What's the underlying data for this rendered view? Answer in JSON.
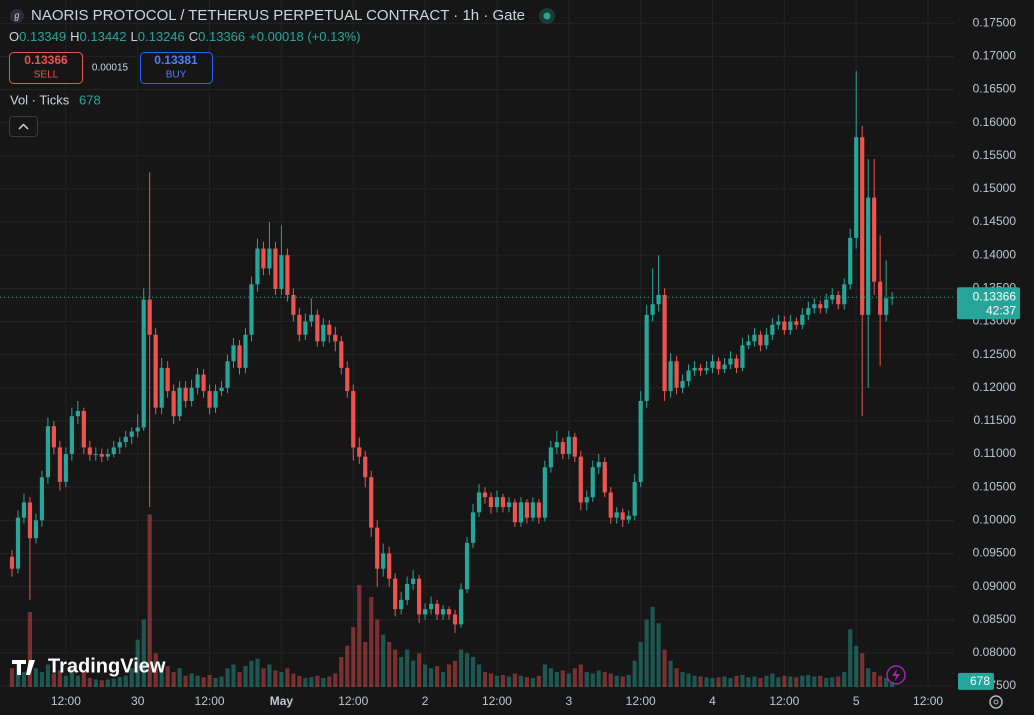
{
  "chart_data": {
    "type": "candlestick",
    "title": "NAORIS PROTOCOL / TETHERUS PERPETUAL CONTRACT · 1h · Gate",
    "ohlc_legend": [
      {
        "key": "O",
        "value": 0.13349
      },
      {
        "key": "H",
        "value": 0.13442
      },
      {
        "key": "L",
        "value": 0.13246
      },
      {
        "key": "C",
        "value": 0.13366
      }
    ],
    "change": "+0.00018 (+0.13%)",
    "sell": {
      "value": 0.13366,
      "label": "SELL"
    },
    "spread": 0.00015,
    "buy": {
      "value": 0.13381,
      "label": "BUY"
    },
    "volume_title": "Vol · Ticks",
    "last_price": 0.13366,
    "countdown": "42:37",
    "watermark": "TradingView",
    "up_color": "#26a69a",
    "down_color": "#ef5350",
    "grid": true,
    "ylim": [
      0.0744,
      0.1785
    ],
    "yticks": [
      {
        "value": 0.075,
        "label": "0.07500"
      },
      {
        "value": 0.08,
        "label": "0.08000"
      },
      {
        "value": 0.085,
        "label": "0.08500"
      },
      {
        "value": 0.09,
        "label": "0.09000"
      },
      {
        "value": 0.095,
        "label": "0.09500"
      },
      {
        "value": 0.1,
        "label": "0.10000"
      },
      {
        "value": 0.105,
        "label": "0.10500"
      },
      {
        "value": 0.11,
        "label": "0.11000"
      },
      {
        "value": 0.115,
        "label": "0.11500"
      },
      {
        "value": 0.12,
        "label": "0.12000"
      },
      {
        "value": 0.125,
        "label": "0.12500"
      },
      {
        "value": 0.13,
        "label": "0.13000"
      },
      {
        "value": 0.135,
        "label": "0.13500"
      },
      {
        "value": 0.14,
        "label": "0.14000"
      },
      {
        "value": 0.145,
        "label": "0.14500"
      },
      {
        "value": 0.15,
        "label": "0.15000"
      },
      {
        "value": 0.155,
        "label": "0.15500"
      },
      {
        "value": 0.16,
        "label": "0.16000"
      },
      {
        "value": 0.165,
        "label": "0.16500"
      },
      {
        "value": 0.17,
        "label": "0.17000"
      },
      {
        "value": 0.175,
        "label": "0.17500"
      }
    ],
    "xlim": [
      -2,
      157.5
    ],
    "xticks": [
      {
        "value": 9,
        "label": "12:00"
      },
      {
        "value": 21,
        "label": "30"
      },
      {
        "value": 33,
        "label": "12:00"
      },
      {
        "value": 45,
        "label": "May"
      },
      {
        "value": 57,
        "label": "12:00"
      },
      {
        "value": 69,
        "label": "2"
      },
      {
        "value": 81,
        "label": "12:00"
      },
      {
        "value": 93,
        "label": "3"
      },
      {
        "value": 105,
        "label": "12:00"
      },
      {
        "value": 117,
        "label": "4"
      },
      {
        "value": 129,
        "label": "12:00"
      },
      {
        "value": 141,
        "label": "5"
      },
      {
        "value": 153,
        "label": "12:00"
      }
    ],
    "volume_ylim": [
      0,
      40000
    ],
    "candles": [
      [
        0.0945,
        0.0955,
        0.0915,
        0.0927
      ],
      [
        0.0927,
        0.1015,
        0.092,
        0.1004
      ],
      [
        0.1004,
        0.104,
        0.0995,
        0.1027
      ],
      [
        0.1027,
        0.1035,
        0.088,
        0.0973
      ],
      [
        0.0973,
        0.101,
        0.0965,
        0.1
      ],
      [
        0.1,
        0.1075,
        0.099,
        0.1065
      ],
      [
        0.1065,
        0.1155,
        0.1055,
        0.1142
      ],
      [
        0.1142,
        0.115,
        0.11,
        0.111
      ],
      [
        0.111,
        0.112,
        0.1045,
        0.1058
      ],
      [
        0.1058,
        0.111,
        0.105,
        0.11
      ],
      [
        0.11,
        0.117,
        0.109,
        0.1157
      ],
      [
        0.1157,
        0.118,
        0.1145,
        0.1165
      ],
      [
        0.1165,
        0.117,
        0.11,
        0.111
      ],
      [
        0.111,
        0.112,
        0.109,
        0.1099
      ],
      [
        0.1099,
        0.111,
        0.109,
        0.11
      ],
      [
        0.11,
        0.1108,
        0.1088,
        0.1096
      ],
      [
        0.1096,
        0.1108,
        0.109,
        0.11
      ],
      [
        0.11,
        0.112,
        0.1095,
        0.111
      ],
      [
        0.111,
        0.1125,
        0.11,
        0.1118
      ],
      [
        0.1118,
        0.1135,
        0.111,
        0.1126
      ],
      [
        0.1126,
        0.114,
        0.1115,
        0.1134
      ],
      [
        0.1134,
        0.116,
        0.1125,
        0.114
      ],
      [
        0.114,
        0.135,
        0.1135,
        0.1333
      ],
      [
        0.1333,
        0.1525,
        0.102,
        0.128
      ],
      [
        0.128,
        0.129,
        0.116,
        0.117
      ],
      [
        0.117,
        0.1245,
        0.116,
        0.123
      ],
      [
        0.123,
        0.124,
        0.1185,
        0.1195
      ],
      [
        0.1195,
        0.1205,
        0.1145,
        0.1157
      ],
      [
        0.1157,
        0.121,
        0.115,
        0.12
      ],
      [
        0.12,
        0.121,
        0.117,
        0.118
      ],
      [
        0.118,
        0.1212,
        0.1172,
        0.12
      ],
      [
        0.12,
        0.123,
        0.119,
        0.122
      ],
      [
        0.122,
        0.1228,
        0.1185,
        0.1195
      ],
      [
        0.1195,
        0.1205,
        0.116,
        0.117
      ],
      [
        0.117,
        0.1205,
        0.1162,
        0.1195
      ],
      [
        0.1195,
        0.121,
        0.1188,
        0.12
      ],
      [
        0.12,
        0.125,
        0.1192,
        0.124
      ],
      [
        0.124,
        0.1275,
        0.123,
        0.1264
      ],
      [
        0.1264,
        0.1272,
        0.122,
        0.123
      ],
      [
        0.123,
        0.129,
        0.1222,
        0.128
      ],
      [
        0.128,
        0.1368,
        0.127,
        0.1356
      ],
      [
        0.1356,
        0.1425,
        0.1345,
        0.141
      ],
      [
        0.141,
        0.142,
        0.137,
        0.138
      ],
      [
        0.138,
        0.145,
        0.137,
        0.141
      ],
      [
        0.141,
        0.142,
        0.134,
        0.1349
      ],
      [
        0.1349,
        0.1445,
        0.134,
        0.14
      ],
      [
        0.14,
        0.141,
        0.133,
        0.134
      ],
      [
        0.134,
        0.135,
        0.13,
        0.131
      ],
      [
        0.131,
        0.132,
        0.127,
        0.128
      ],
      [
        0.128,
        0.1312,
        0.1272,
        0.13
      ],
      [
        0.13,
        0.1335,
        0.1292,
        0.131
      ],
      [
        0.131,
        0.1318,
        0.1262,
        0.127
      ],
      [
        0.127,
        0.1305,
        0.1262,
        0.1295
      ],
      [
        0.1295,
        0.1302,
        0.1268,
        0.128
      ],
      [
        0.128,
        0.1292,
        0.1255,
        0.127
      ],
      [
        0.127,
        0.1278,
        0.122,
        0.123
      ],
      [
        0.123,
        0.124,
        0.1185,
        0.1195
      ],
      [
        0.1195,
        0.1205,
        0.109,
        0.111
      ],
      [
        0.111,
        0.1125,
        0.1085,
        0.1096
      ],
      [
        0.1096,
        0.1105,
        0.105,
        0.1065
      ],
      [
        0.1065,
        0.1075,
        0.0975,
        0.0989
      ],
      [
        0.0989,
        0.1,
        0.09,
        0.0927
      ],
      [
        0.0927,
        0.0965,
        0.0915,
        0.095
      ],
      [
        0.095,
        0.096,
        0.09,
        0.0912
      ],
      [
        0.0912,
        0.092,
        0.0855,
        0.0866
      ],
      [
        0.0866,
        0.0892,
        0.0858,
        0.088
      ],
      [
        0.088,
        0.0915,
        0.0872,
        0.0904
      ],
      [
        0.0904,
        0.0925,
        0.0895,
        0.0912
      ],
      [
        0.0912,
        0.0918,
        0.0845,
        0.0858
      ],
      [
        0.0858,
        0.0875,
        0.085,
        0.0866
      ],
      [
        0.0866,
        0.0885,
        0.0858,
        0.0874
      ],
      [
        0.0874,
        0.088,
        0.085,
        0.0858
      ],
      [
        0.0858,
        0.0872,
        0.085,
        0.0866
      ],
      [
        0.0866,
        0.087,
        0.085,
        0.0858
      ],
      [
        0.0858,
        0.0865,
        0.083,
        0.0843
      ],
      [
        0.0843,
        0.0905,
        0.0838,
        0.0896
      ],
      [
        0.0896,
        0.0975,
        0.089,
        0.0966
      ],
      [
        0.0966,
        0.1025,
        0.0958,
        0.1012
      ],
      [
        0.1012,
        0.1055,
        0.1005,
        0.1042
      ],
      [
        0.1042,
        0.105,
        0.1025,
        0.1035
      ],
      [
        0.1035,
        0.1042,
        0.101,
        0.102
      ],
      [
        0.102,
        0.1045,
        0.1012,
        0.1035
      ],
      [
        0.1035,
        0.104,
        0.1012,
        0.102
      ],
      [
        0.102,
        0.1035,
        0.1012,
        0.1027
      ],
      [
        0.1027,
        0.1032,
        0.099,
        0.0997
      ],
      [
        0.0997,
        0.1035,
        0.099,
        0.1027
      ],
      [
        0.1027,
        0.1032,
        0.0995,
        0.1004
      ],
      [
        0.1004,
        0.1035,
        0.0998,
        0.1027
      ],
      [
        0.1027,
        0.1032,
        0.0995,
        0.1004
      ],
      [
        0.1004,
        0.109,
        0.0998,
        0.108
      ],
      [
        0.108,
        0.112,
        0.1072,
        0.111
      ],
      [
        0.111,
        0.1135,
        0.11,
        0.1118
      ],
      [
        0.1118,
        0.1125,
        0.1092,
        0.11
      ],
      [
        0.11,
        0.1135,
        0.1092,
        0.1126
      ],
      [
        0.1126,
        0.1132,
        0.1088,
        0.1096
      ],
      [
        0.1096,
        0.1105,
        0.1015,
        0.1027
      ],
      [
        0.1027,
        0.1045,
        0.1015,
        0.1035
      ],
      [
        0.1035,
        0.109,
        0.1028,
        0.108
      ],
      [
        0.108,
        0.11,
        0.107,
        0.1088
      ],
      [
        0.1088,
        0.1095,
        0.1035,
        0.1042
      ],
      [
        0.1042,
        0.105,
        0.0995,
        0.1004
      ],
      [
        0.1004,
        0.102,
        0.0995,
        0.1012
      ],
      [
        0.1012,
        0.1018,
        0.099,
        0.1001
      ],
      [
        0.1001,
        0.1015,
        0.0995,
        0.1007
      ],
      [
        0.1007,
        0.107,
        0.1,
        0.1058
      ],
      [
        0.1058,
        0.1195,
        0.105,
        0.118
      ],
      [
        0.118,
        0.1325,
        0.117,
        0.131
      ],
      [
        0.131,
        0.138,
        0.13,
        0.1326
      ],
      [
        0.1326,
        0.14,
        0.1315,
        0.134
      ],
      [
        0.134,
        0.135,
        0.118,
        0.1195
      ],
      [
        0.1195,
        0.1252,
        0.1185,
        0.124
      ],
      [
        0.124,
        0.1248,
        0.119,
        0.12
      ],
      [
        0.12,
        0.122,
        0.1192,
        0.121
      ],
      [
        0.121,
        0.1235,
        0.1202,
        0.1226
      ],
      [
        0.1226,
        0.124,
        0.1218,
        0.123
      ],
      [
        0.123,
        0.1236,
        0.1218,
        0.1226
      ],
      [
        0.1226,
        0.124,
        0.122,
        0.123
      ],
      [
        0.123,
        0.125,
        0.1222,
        0.124
      ],
      [
        0.124,
        0.1246,
        0.122,
        0.1228
      ],
      [
        0.1228,
        0.1245,
        0.1222,
        0.1235
      ],
      [
        0.1235,
        0.1255,
        0.1228,
        0.1244
      ],
      [
        0.1244,
        0.125,
        0.1222,
        0.123
      ],
      [
        0.123,
        0.1275,
        0.1225,
        0.1264
      ],
      [
        0.1264,
        0.128,
        0.1258,
        0.127
      ],
      [
        0.127,
        0.129,
        0.1262,
        0.128
      ],
      [
        0.128,
        0.1286,
        0.1255,
        0.1264
      ],
      [
        0.1264,
        0.129,
        0.1258,
        0.128
      ],
      [
        0.128,
        0.1305,
        0.1272,
        0.1295
      ],
      [
        0.1295,
        0.131,
        0.1288,
        0.13
      ],
      [
        0.13,
        0.1308,
        0.128,
        0.1287
      ],
      [
        0.1287,
        0.131,
        0.128,
        0.13
      ],
      [
        0.13,
        0.1306,
        0.1288,
        0.1295
      ],
      [
        0.1295,
        0.132,
        0.1288,
        0.131
      ],
      [
        0.131,
        0.133,
        0.1302,
        0.132
      ],
      [
        0.132,
        0.1335,
        0.1312,
        0.1326
      ],
      [
        0.1326,
        0.1332,
        0.1312,
        0.132
      ],
      [
        0.132,
        0.1342,
        0.1312,
        0.1333
      ],
      [
        0.1333,
        0.135,
        0.1326,
        0.134
      ],
      [
        0.134,
        0.1346,
        0.1318,
        0.1326
      ],
      [
        0.1326,
        0.1365,
        0.1318,
        0.1356
      ],
      [
        0.1356,
        0.144,
        0.1348,
        0.1426
      ],
      [
        0.1426,
        0.1678,
        0.141,
        0.1578
      ],
      [
        0.1578,
        0.1595,
        0.1157,
        0.131
      ],
      [
        0.131,
        0.1545,
        0.12,
        0.1487
      ],
      [
        0.1487,
        0.1545,
        0.134,
        0.136
      ],
      [
        0.136,
        0.143,
        0.1233,
        0.131
      ],
      [
        0.131,
        0.1392,
        0.13,
        0.13349
      ],
      [
        0.13349,
        0.13442,
        0.13246,
        0.13366
      ]
    ],
    "volumes": [
      2500,
      3000,
      2000,
      10000,
      2500,
      2000,
      3000,
      1800,
      2200,
      1500,
      2500,
      1500,
      2000,
      1200,
      1000,
      900,
      1000,
      1100,
      1300,
      1500,
      2500,
      6300,
      9000,
      23000,
      4500,
      3000,
      2800,
      2000,
      2500,
      1500,
      1800,
      1500,
      1300,
      1600,
      1200,
      1400,
      2500,
      3000,
      2000,
      2800,
      3500,
      3800,
      2500,
      3000,
      2200,
      2000,
      2500,
      1800,
      1500,
      1200,
      1300,
      1500,
      1200,
      1400,
      1800,
      4000,
      5500,
      8000,
      13600,
      6000,
      12000,
      9000,
      7000,
      6000,
      5000,
      4000,
      5000,
      3500,
      4500,
      3000,
      2500,
      2800,
      2000,
      3000,
      3500,
      5000,
      4500,
      4000,
      3000,
      2000,
      1800,
      1500,
      1600,
      1400,
      1800,
      1500,
      1300,
      1200,
      1500,
      3000,
      2500,
      2000,
      2200,
      1800,
      2500,
      3000,
      2000,
      1800,
      2200,
      2000,
      1800,
      1500,
      1400,
      1600,
      3500,
      6000,
      9000,
      10700,
      8500,
      5000,
      3500,
      2500,
      2000,
      1800,
      1500,
      1400,
      1300,
      1200,
      1300,
      1400,
      1200,
      1500,
      1600,
      1300,
      1400,
      1200,
      1500,
      1800,
      1300,
      1500,
      1400,
      1300,
      1500,
      1600,
      1400,
      1500,
      1200,
      1300,
      1400,
      2000,
      7700,
      5500,
      4500,
      2500,
      2000,
      1500,
      1200,
      678
    ]
  }
}
